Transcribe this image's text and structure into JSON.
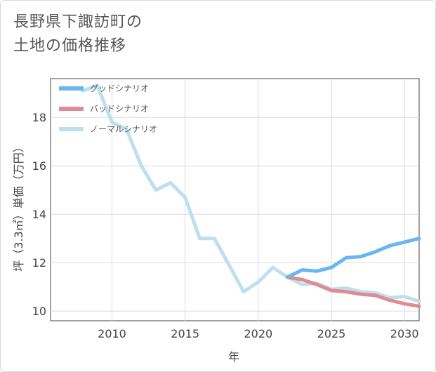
{
  "page": {
    "title_lines": [
      "長野県下諏訪町の",
      "土地の価格推移"
    ]
  },
  "chart_data": {
    "type": "line",
    "xlabel": "年",
    "ylabel": "坪（3.3㎡）単価（万円）",
    "xlim": [
      2005.8,
      2031
    ],
    "ylim": [
      9.6,
      19.6
    ],
    "x_ticks": [
      2010,
      2015,
      2020,
      2025,
      2030
    ],
    "y_ticks": [
      10,
      12,
      14,
      16,
      18
    ],
    "grid": true,
    "legend_position": "top-left",
    "series": [
      {
        "name": "グッドシナリオ",
        "color": "#6ab6ee",
        "x": [
          2022,
          2023,
          2024,
          2025,
          2026,
          2027,
          2028,
          2029,
          2030,
          2031
        ],
        "values": [
          11.4,
          11.7,
          11.65,
          11.8,
          12.2,
          12.25,
          12.45,
          12.7,
          12.85,
          13.0
        ]
      },
      {
        "name": "バッドシナリオ",
        "color": "#e08a92",
        "x": [
          2022,
          2023,
          2024,
          2025,
          2026,
          2027,
          2028,
          2029,
          2030,
          2031
        ],
        "values": [
          11.4,
          11.3,
          11.1,
          10.85,
          10.8,
          10.7,
          10.65,
          10.45,
          10.3,
          10.2
        ]
      },
      {
        "name": "ノーマルシナリオ",
        "color": "#bddfee",
        "x": [
          2008,
          2009,
          2010,
          2011,
          2012,
          2013,
          2014,
          2015,
          2016,
          2017,
          2018,
          2019,
          2020,
          2021,
          2022,
          2023,
          2024,
          2025,
          2026,
          2027,
          2028,
          2029,
          2030,
          2031
        ],
        "values": [
          19.1,
          19.3,
          17.8,
          17.5,
          16.0,
          15.0,
          15.3,
          14.7,
          13.0,
          13.0,
          11.9,
          10.8,
          11.2,
          11.8,
          11.4,
          11.1,
          11.15,
          10.9,
          10.95,
          10.8,
          10.75,
          10.55,
          10.6,
          10.4
        ]
      }
    ]
  }
}
